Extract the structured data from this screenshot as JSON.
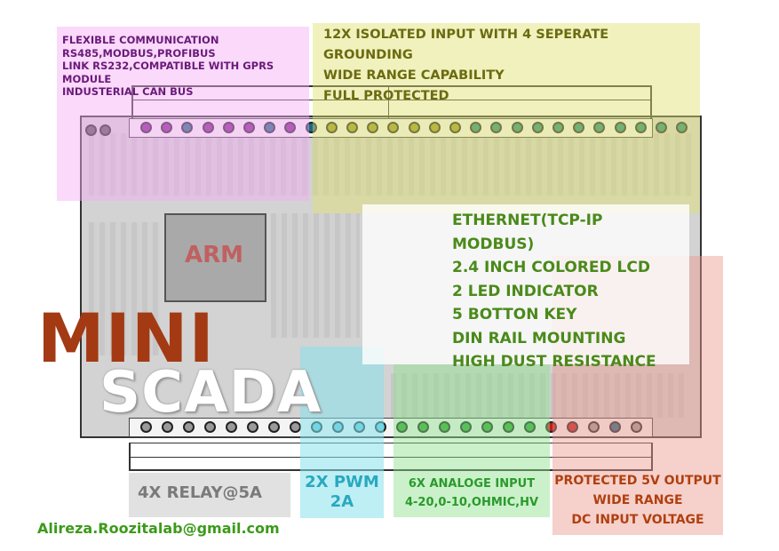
{
  "colors": {
    "pin_purple": "#8a1a9a",
    "pin_blue": "#1a6a8a",
    "pin_olive": "#9a9a1a",
    "pin_teal": "#1a8a7a",
    "pin_grey": "#9a9a9a",
    "pin_cyan": "#5ac8dc",
    "pin_green": "#2aaa2a",
    "pin_red": "#c81a1a"
  },
  "top_pins": [
    "purple",
    "purple",
    "blue",
    "purple",
    "purple",
    "purple",
    "blue",
    "purple",
    "blue",
    "olive",
    "olive",
    "olive",
    "olive",
    "olive",
    "olive",
    "olive",
    "teal",
    "teal",
    "teal",
    "teal",
    "teal",
    "teal",
    "teal",
    "teal",
    "teal",
    "teal",
    "teal"
  ],
  "bottom_pins": [
    "grey",
    "grey",
    "grey",
    "grey",
    "grey",
    "grey",
    "grey",
    "grey",
    "cyan",
    "cyan",
    "cyan",
    "cyan",
    "green",
    "green",
    "green",
    "green",
    "green",
    "green",
    "green",
    "red",
    "red",
    "grey",
    "blue",
    "grey"
  ],
  "communication": {
    "lines": [
      "FLEXIBLE COMMUNICATION",
      "RS485,MODBUS,PROFIBUS",
      "LINK RS232,COMPATIBLE WITH GPRS MODULE",
      "INDUSTERIAL CAN BUS"
    ]
  },
  "isolated_input": {
    "lines": [
      "12X ISOLATED INPUT WITH 4 SEPERATE GROUNDING",
      "WIDE RANGE CAPABILITY",
      "FULL PROTECTED"
    ]
  },
  "features": {
    "lines": [
      "ETHERNET(TCP-IP MODBUS)",
      "2.4 INCH COLORED LCD",
      "2 LED INDICATOR",
      "5 BOTTON KEY",
      "DIN RAIL MOUNTING",
      "HIGH DUST RESISTANCE"
    ]
  },
  "processor_label": "ARM",
  "title_main": "MINI",
  "title_sub": "SCADA",
  "relay": {
    "text": "4X RELAY@5A"
  },
  "pwm": {
    "lines": [
      "2X PWM",
      "2A"
    ]
  },
  "analog": {
    "lines": [
      "6X ANALOGE INPUT",
      "4-20,0-10,OHMIC,HV"
    ]
  },
  "power": {
    "lines": [
      "PROTECTED 5V OUTPUT",
      "WIDE RANGE",
      "DC INPUT VOLTAGE"
    ]
  },
  "email": "Alireza.Roozitalab@gmail.com"
}
